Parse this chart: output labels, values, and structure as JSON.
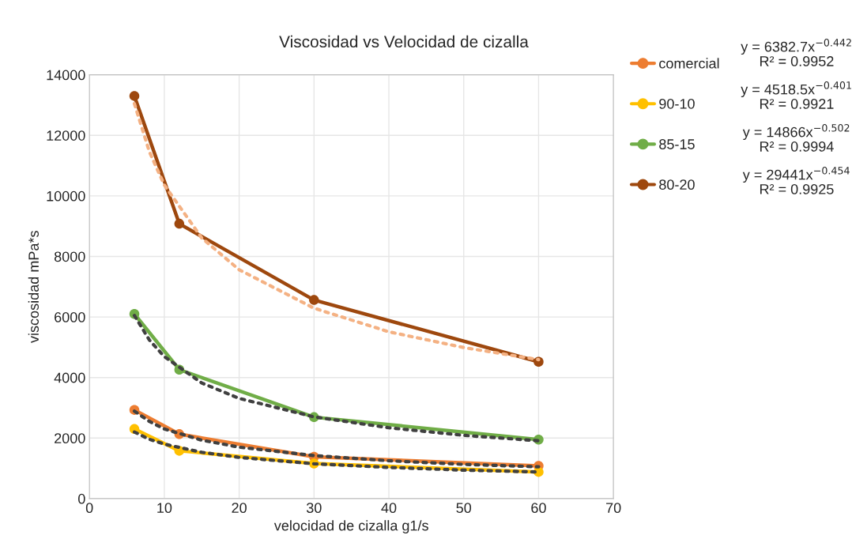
{
  "chart_data": {
    "type": "line",
    "title": "Viscosidad vs Velocidad de cizalla",
    "xlabel": "velocidad de cizalla g1/s",
    "ylabel": "viscosidad mPa*s",
    "x": [
      6,
      12,
      30,
      60
    ],
    "xlim": [
      0,
      70
    ],
    "xticks": [
      0,
      10,
      20,
      30,
      40,
      50,
      60,
      70
    ],
    "ylim": [
      0,
      14000
    ],
    "yticks": [
      0,
      2000,
      4000,
      6000,
      8000,
      10000,
      12000,
      14000
    ],
    "grid": true,
    "legend": "top right",
    "marker": "circle",
    "line_style": "solid",
    "series": [
      {
        "name": "comercial",
        "color": "#ed7d31",
        "values": [
          2930,
          2130,
          1380,
          1080
        ]
      },
      {
        "name": "90-10",
        "color": "#ffc000",
        "values": [
          2300,
          1580,
          1160,
          880
        ]
      },
      {
        "name": "85-15",
        "color": "#70ad47",
        "values": [
          6100,
          4260,
          2690,
          1950
        ]
      },
      {
        "name": "80-20",
        "color": "#9e480e",
        "values": [
          13300,
          9080,
          6560,
          4520
        ]
      },
      {
        "type": "line",
        "marker": "none",
        "line_style": "dotted",
        "color": "#404040",
        "x": [
          6,
          8,
          10,
          15,
          20,
          30,
          40,
          50,
          60
        ],
        "values": [
          2890,
          2550,
          2300,
          1930,
          1700,
          1420,
          1250,
          1130,
          1050
        ]
      },
      {
        "type": "line",
        "marker": "none",
        "line_style": "dotted",
        "color": "#404040",
        "x": [
          6,
          8,
          10,
          15,
          20,
          30,
          40,
          50,
          60
        ],
        "values": [
          2200,
          1960,
          1800,
          1530,
          1360,
          1150,
          1030,
          940,
          880
        ]
      },
      {
        "type": "line",
        "marker": "none",
        "line_style": "dotted",
        "color": "#404040",
        "x": [
          6,
          8,
          10,
          15,
          20,
          30,
          40,
          50,
          60
        ],
        "values": [
          6050,
          5240,
          4690,
          3820,
          3310,
          2700,
          2340,
          2090,
          1910
        ]
      },
      {
        "type": "line",
        "marker": "none",
        "line_style": "dotted",
        "color": "#f4b183",
        "x": [
          6,
          8,
          10,
          15,
          20,
          30,
          40,
          50,
          60
        ],
        "values": [
          13050,
          11460,
          10360,
          8610,
          7560,
          6290,
          5510,
          4990,
          4590
        ]
      }
    ],
    "annotations": [
      "y = 6382.7x$^{−0.442}$\nR² = 0.9952",
      "y = 4518.5x$^{−0.401}$\nR² = 0.9921",
      "y = 14866x$^{−0.502}$\nR² = 0.9994",
      "y = 29441x$^{−0.454}$\nR² = 0.9925"
    ]
  }
}
